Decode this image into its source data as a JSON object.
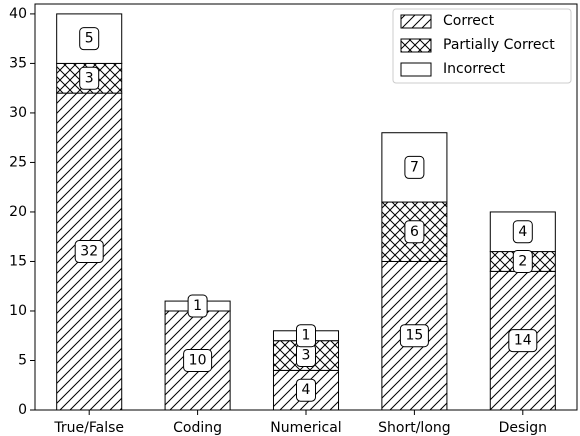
{
  "chart_data": {
    "type": "bar",
    "stacked": true,
    "categories": [
      "True/False",
      "Coding",
      "Numerical",
      "Short/long",
      "Design"
    ],
    "series": [
      {
        "name": "Correct",
        "values": [
          32,
          10,
          4,
          15,
          14
        ],
        "pattern": "diagonal-hatch"
      },
      {
        "name": "Partially Correct",
        "values": [
          3,
          0,
          3,
          6,
          2
        ],
        "pattern": "cross-hatch"
      },
      {
        "name": "Incorrect",
        "values": [
          5,
          1,
          1,
          7,
          4
        ],
        "pattern": "none"
      }
    ],
    "data_labels": [
      [
        "32",
        "10",
        "4",
        "15",
        "14"
      ],
      [
        "3",
        "",
        "3",
        "6",
        "2"
      ],
      [
        "5",
        "1",
        "1",
        "7",
        "4"
      ]
    ],
    "title": "",
    "xlabel": "",
    "ylabel": "",
    "ylim": [
      0,
      41
    ],
    "yticks": [
      0,
      5,
      10,
      15,
      20,
      25,
      30,
      35,
      40
    ],
    "grid": false,
    "legend_position": "top-right",
    "colors": {
      "fill": "#ffffff",
      "edge": "#000000"
    }
  }
}
